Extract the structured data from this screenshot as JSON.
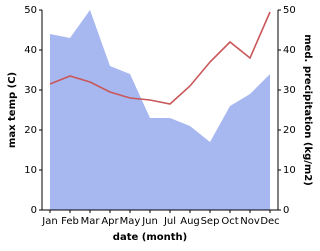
{
  "chart_data": {
    "type": "line",
    "x_label": "date (month)",
    "y_label": "max temp (C)",
    "y2_label": "med. precipitation (kg/m2)",
    "categories": [
      "Jan",
      "Feb",
      "Mar",
      "Apr",
      "May",
      "Jun",
      "Jul",
      "Aug",
      "Sep",
      "Oct",
      "Nov",
      "Dec"
    ],
    "series": [
      {
        "kind": "area",
        "axis": "y2",
        "color": "#a7b8f0",
        "values": [
          44,
          43,
          50,
          36,
          34,
          23,
          23,
          21,
          17,
          26,
          29,
          34
        ]
      },
      {
        "kind": "line",
        "axis": "y",
        "color": "#c9575a",
        "values": [
          31.5,
          33.5,
          32,
          29.5,
          28,
          27.5,
          26.5,
          31,
          37,
          42,
          38,
          49.5
        ]
      }
    ],
    "ylim": [
      0,
      50
    ],
    "yticks": [
      0,
      10,
      20,
      30,
      40,
      50
    ],
    "y2lim": [
      0,
      50
    ],
    "y2ticks": [
      0,
      10,
      20,
      30,
      40,
      50
    ]
  }
}
